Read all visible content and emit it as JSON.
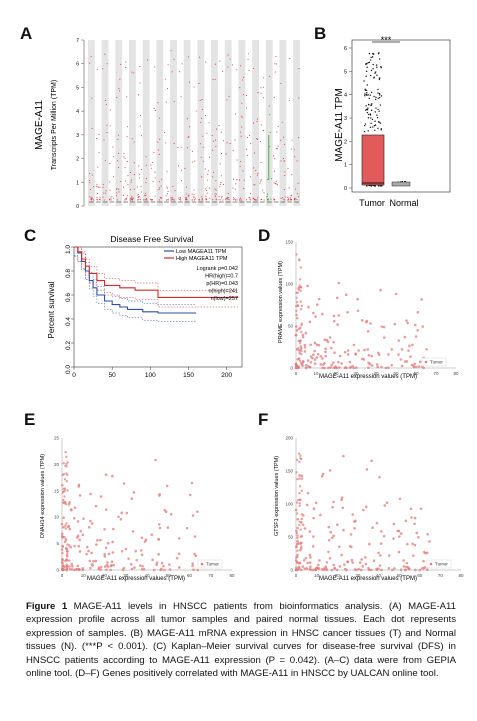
{
  "panels": {
    "a": {
      "letter": "A",
      "gene_label": "MAGE-A11",
      "y_axis_label": "Transcripts Per Million (TPM)",
      "y_ticks": [
        "0",
        "1",
        "2",
        "3",
        "4",
        "5",
        "6",
        "7"
      ],
      "highlight_color": "#2e9a2e",
      "tumor_color": "#d9363e"
    },
    "b": {
      "letter": "B",
      "y_axis_label": "MAGE-A11 TPM",
      "significance": "***",
      "categories": [
        "Tumor",
        "Normal"
      ],
      "y_ticks": [
        "0",
        "1",
        "2",
        "3",
        "4",
        "5",
        "6"
      ],
      "box_color": "#e25a5a"
    },
    "c": {
      "letter": "C",
      "title": "Disease Free Survival",
      "y_axis_label": "Percent survival",
      "x_ticks": [
        "0",
        "50",
        "100",
        "150",
        "200"
      ],
      "y_ticks": [
        "0.0",
        "0.2",
        "0.4",
        "0.6",
        "0.8",
        "1.0"
      ],
      "legend": [
        {
          "label": "Low MAGEA11 TPM",
          "color": "#2f4fa8"
        },
        {
          "label": "High MAGEA11 TPM",
          "color": "#d42a2a"
        }
      ],
      "stats": [
        "Logrank p=0.042",
        "HR(high)=0.7",
        "p(HR)=0.043",
        "n(high)=241",
        "n(low)=257"
      ]
    },
    "d": {
      "letter": "D",
      "x_axis_label": "MAGE-A11 expression values (TPM)",
      "y_axis_label": "PRAME expression values (TPM)",
      "x_ticks": [
        "0",
        "10",
        "20",
        "30",
        "40",
        "50",
        "60",
        "70",
        "80"
      ],
      "y_ticks": [
        "0",
        "50",
        "100",
        "150"
      ],
      "legend": "Tumor"
    },
    "e": {
      "letter": "E",
      "x_axis_label": "MAGE-A11 expression values (TPM)",
      "y_axis_label": "DNAH14 expression values (TPM)",
      "x_ticks": [
        "0",
        "10",
        "20",
        "30",
        "40",
        "50",
        "60",
        "70",
        "80"
      ],
      "y_ticks": [
        "0",
        "5",
        "10",
        "15",
        "20",
        "25"
      ],
      "legend": "Tumor"
    },
    "f": {
      "letter": "F",
      "x_axis_label": "MAGE-A11 expression values (TPM)",
      "y_axis_label": "GTSF1 expression values (TPM)",
      "x_ticks": [
        "0",
        "10",
        "20",
        "30",
        "40",
        "50",
        "60",
        "70",
        "80"
      ],
      "y_ticks": [
        "0",
        "50",
        "100",
        "150",
        "200"
      ],
      "legend": "Tumor"
    }
  },
  "caption": {
    "figure_label": "Figure 1",
    "text": " MAGE-A11 levels in HNSCC patients from bioinformatics analysis. (A) MAGE-A11 expression profile across all tumor samples and paired normal tissues. Each dot represents expression of samples. (B) MAGE-A11 mRNA expression in HNSC cancer tissues (T) and Normal tissues (N). (***P < 0.001). (C) Kaplan–Meier survival curves for disease-free survival (DFS) in HNSCC patients according to MAGE-A11 expression (P = 0.042). (A–C) data were from GEPIA online tool. (D–F) Genes positively correlated with MAGE-A11 in HNSCC by UALCAN online tool."
  }
}
